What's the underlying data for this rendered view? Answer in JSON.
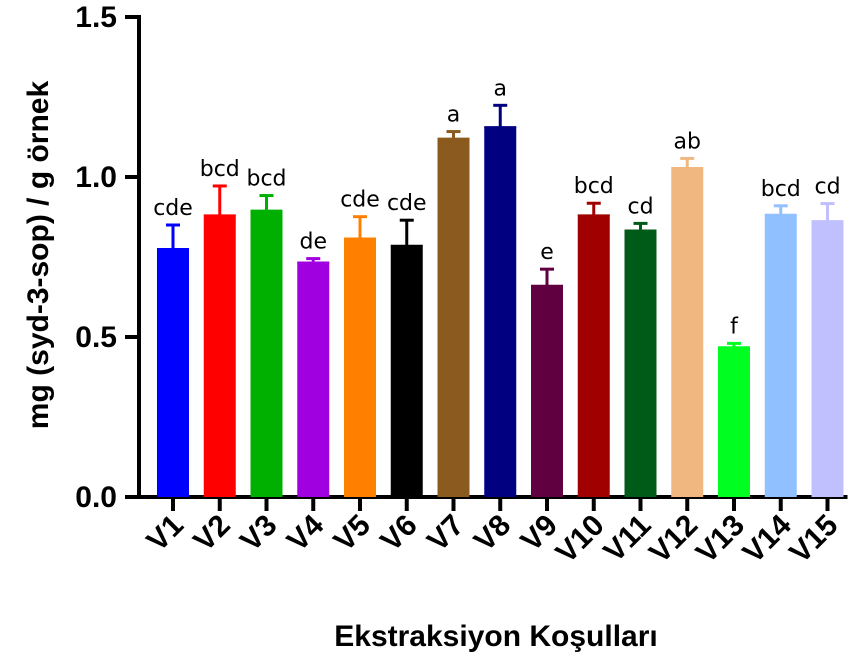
{
  "chart_data": {
    "type": "bar",
    "title": "",
    "xlabel": "Ekstraksiyon Koşulları",
    "ylabel": "mg (syd-3-sop) / g örnek",
    "ylim": [
      0,
      1.5
    ],
    "yticks": [
      0.0,
      0.5,
      1.0,
      1.5
    ],
    "ytick_labels": [
      "0.0",
      "0.5",
      "1.0",
      "1.5"
    ],
    "grid": false,
    "legend": "none",
    "categories": [
      "V1",
      "V2",
      "V3",
      "V4",
      "V5",
      "V6",
      "V7",
      "V8",
      "V9",
      "V10",
      "V11",
      "V12",
      "V13",
      "V14",
      "V15"
    ],
    "values": [
      0.775,
      0.88,
      0.895,
      0.733,
      0.808,
      0.785,
      1.12,
      1.156,
      0.66,
      0.88,
      0.833,
      1.028,
      0.468,
      0.882,
      0.862
    ],
    "errors": [
      0.075,
      0.092,
      0.047,
      0.012,
      0.068,
      0.08,
      0.022,
      0.068,
      0.052,
      0.038,
      0.022,
      0.03,
      0.012,
      0.028,
      0.055
    ],
    "significance_labels": [
      "cde",
      "bcd",
      "bcd",
      "de",
      "cde",
      "cde",
      "a",
      "a",
      "e",
      "bcd",
      "cd",
      "ab",
      "f",
      "bcd",
      "cd"
    ],
    "colors": [
      "#0000ff",
      "#ff0000",
      "#00b000",
      "#a000e0",
      "#ff8000",
      "#000000",
      "#8b5a1f",
      "#000080",
      "#600040",
      "#a00000",
      "#005a18",
      "#f0b880",
      "#00ff20",
      "#90c0ff",
      "#c0c0ff"
    ]
  }
}
